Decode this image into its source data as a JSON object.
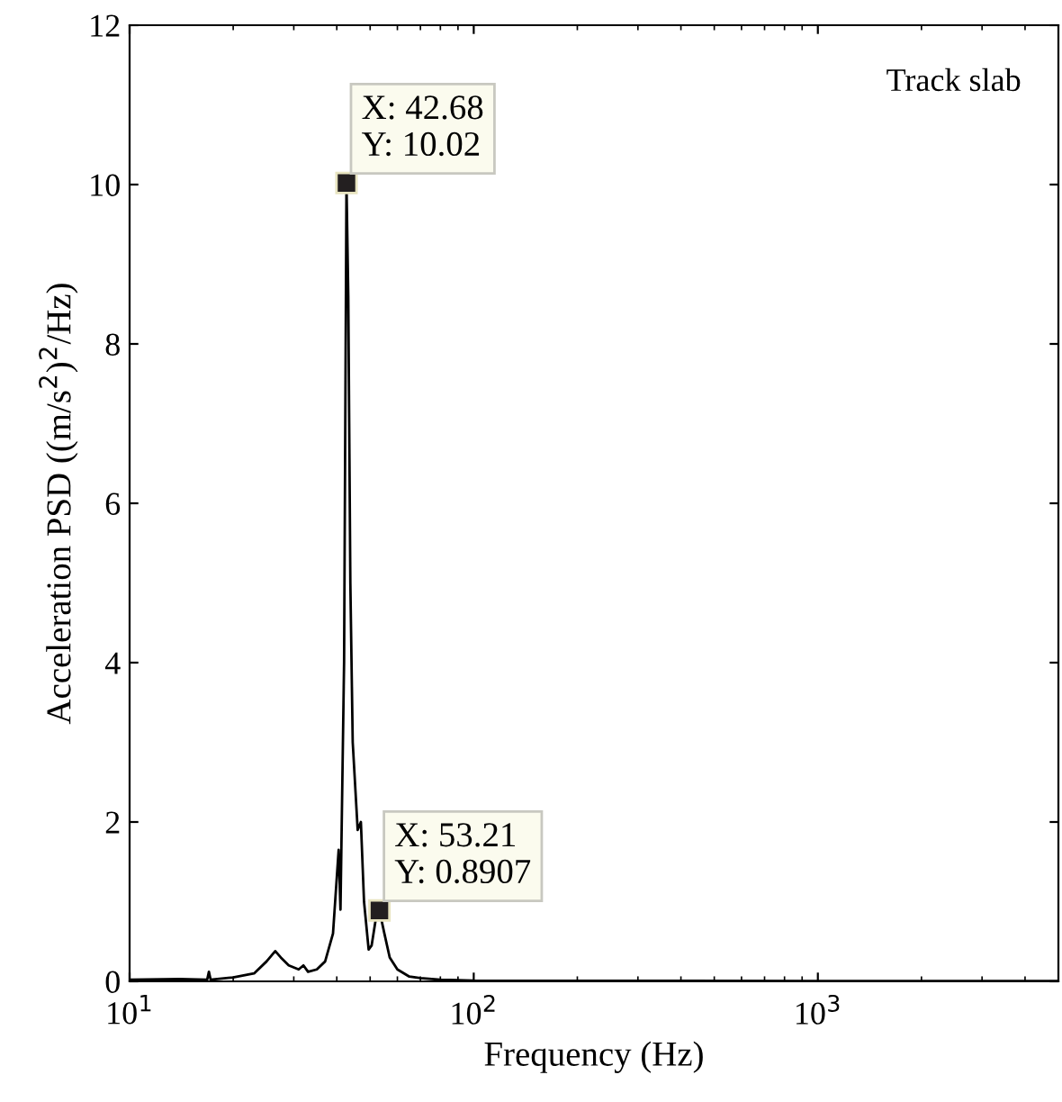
{
  "chart_data": {
    "type": "line",
    "xlabel": "Frequency (Hz)",
    "ylabel": "Acceleration PSD ((m/s$^{2}$)$^{2}$/Hz)",
    "log": "x",
    "xlim": [
      10,
      5000
    ],
    "ylim": [
      0,
      12
    ],
    "xticks": [
      {
        "value": 10,
        "label": "10$^{1}$"
      },
      {
        "value": 100,
        "label": "10$^{2}$"
      },
      {
        "value": 1000,
        "label": "10$^{3}$"
      }
    ],
    "yticks": [
      0,
      2,
      4,
      6,
      8,
      10,
      12
    ],
    "grid": false,
    "legend": false,
    "series": [
      {
        "color": "#000000",
        "x": [
          10,
          14,
          16.8,
          17.0,
          17.2,
          20,
          23,
          25,
          26.5,
          27.5,
          29,
          31,
          32,
          33,
          35,
          37,
          39,
          40.5,
          41,
          42,
          42.68,
          43.2,
          43.8,
          44.5,
          46,
          47,
          48,
          49.5,
          50.5,
          52,
          53.21,
          55,
          57,
          60,
          65,
          70,
          80,
          100,
          1000,
          5000
        ],
        "values": [
          0.02,
          0.03,
          0.02,
          0.12,
          0.02,
          0.05,
          0.1,
          0.25,
          0.38,
          0.3,
          0.2,
          0.15,
          0.2,
          0.12,
          0.15,
          0.25,
          0.6,
          1.65,
          0.9,
          4.0,
          10.02,
          8.6,
          5,
          3,
          1.9,
          2.0,
          1.0,
          0.4,
          0.45,
          0.8,
          0.8907,
          0.6,
          0.3,
          0.15,
          0.06,
          0.04,
          0.02,
          0.01,
          0.005,
          0.005
        ]
      }
    ],
    "annotations": [
      {
        "text": "X: 42.68\nY: 10.02",
        "x": 42.68,
        "y": 10.02
      },
      {
        "text": "X: 53.21\nY: 0.8907",
        "x": 53.21,
        "y": 0.8907
      },
      "Track slab"
    ]
  }
}
